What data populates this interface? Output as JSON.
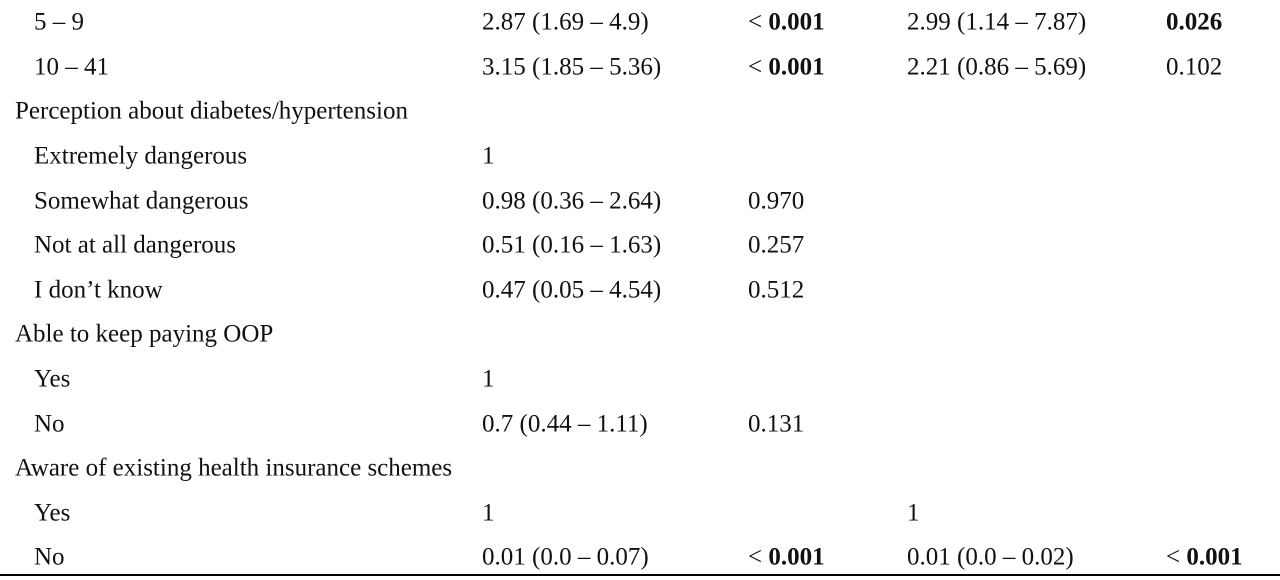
{
  "rows": [
    {
      "label": "5 – 9",
      "or1": "2.87 (1.69 – 4.9)",
      "p1_sym": "< ",
      "p1_num": "0.001",
      "or2": "2.99 (1.14 – 7.87)",
      "p2_sym": "",
      "p2_num": "0.026"
    },
    {
      "label": "10 – 41",
      "or1": "3.15 (1.85 – 5.36)",
      "p1_sym": "< ",
      "p1_num": "0.001",
      "or2": "2.21 (0.86 – 5.69)",
      "p2_sym": "",
      "p2_num": "0.102"
    },
    {
      "label": "Perception about diabetes/hypertension"
    },
    {
      "label": "Extremely dangerous",
      "or1": "1"
    },
    {
      "label": "Somewhat dangerous",
      "or1": "0.98 (0.36 – 2.64)",
      "p1_num": "0.970"
    },
    {
      "label": "Not at all dangerous",
      "or1": "0.51 (0.16 – 1.63)",
      "p1_num": "0.257"
    },
    {
      "label": "I don’t know",
      "or1": "0.47 (0.05 – 4.54)",
      "p1_num": "0.512"
    },
    {
      "label": "Able to keep paying OOP"
    },
    {
      "label": "Yes",
      "or1": "1"
    },
    {
      "label": "No",
      "or1": "0.7 (0.44 – 1.11)",
      "p1_num": "0.131"
    },
    {
      "label": "Aware of existing health insurance schemes"
    },
    {
      "label": "Yes",
      "or1": "1",
      "or2": "1"
    },
    {
      "label": "No",
      "or1": "0.01 (0.0 – 0.07)",
      "p1_sym": "< ",
      "p1_num": "0.001",
      "or2": "0.01 (0.0 – 0.02)",
      "p2_sym": "< ",
      "p2_num": "0.001"
    }
  ]
}
